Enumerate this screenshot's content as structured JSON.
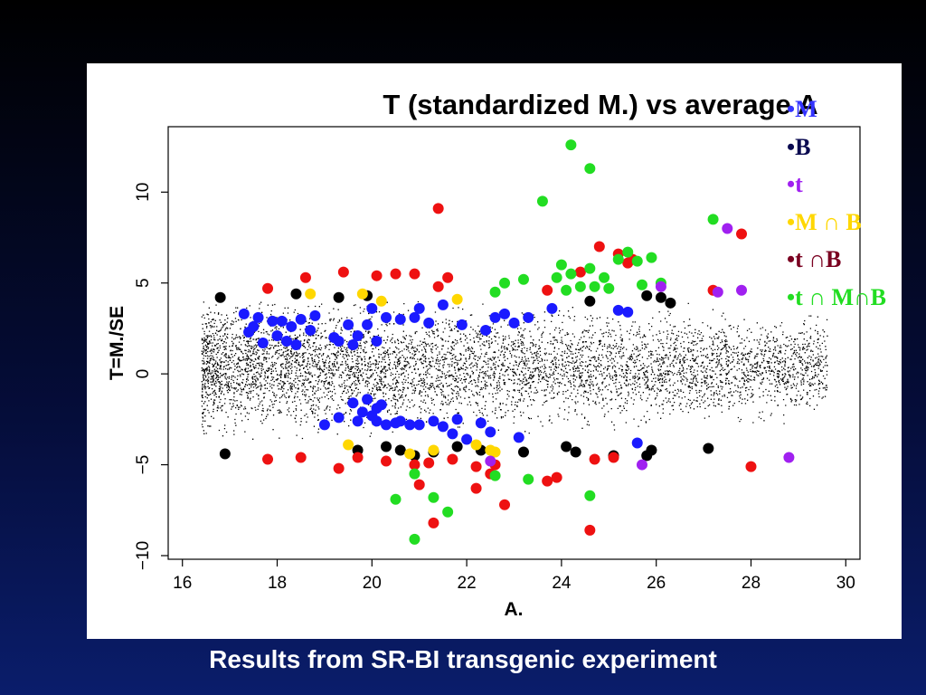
{
  "caption": "Results from SR-BI transgenic experiment",
  "legend": [
    {
      "label": "M",
      "color": "#3333ff"
    },
    {
      "label": "B",
      "color": "#0a0a50"
    },
    {
      "label": "t",
      "color": "#a020f0"
    },
    {
      "label": "M ∩ B",
      "color": "#ffd700"
    },
    {
      "label": "t ∩B",
      "color": "#7a0020"
    },
    {
      "label": "t ∩ M∩B",
      "color": "#22dd22"
    }
  ],
  "chart_data": {
    "type": "scatter",
    "title": "T (standardized M.) vs average A",
    "xlabel": "A.",
    "ylabel": "T=M./SE",
    "xlim": [
      15.7,
      30.3
    ],
    "ylim": [
      -10.2,
      13.6
    ],
    "xticks": [
      "16",
      "18",
      "20",
      "22",
      "24",
      "26",
      "28",
      "30"
    ],
    "yticks": [
      "−10",
      "−5",
      "0",
      "5",
      "10"
    ],
    "background_points": {
      "description_color": "#000000",
      "count": 6000,
      "x_range": [
        16.4,
        29.6
      ],
      "y_center": 0.4
    },
    "series": [
      {
        "name": "blue",
        "color": "#1a1aff",
        "points": [
          [
            17.3,
            3.3
          ],
          [
            17.6,
            3.1
          ],
          [
            17.9,
            2.9
          ],
          [
            18.0,
            2.1
          ],
          [
            18.1,
            2.9
          ],
          [
            18.3,
            2.6
          ],
          [
            18.4,
            1.6
          ],
          [
            18.5,
            3.0
          ],
          [
            18.7,
            2.4
          ],
          [
            18.8,
            3.2
          ],
          [
            17.4,
            2.3
          ],
          [
            17.7,
            1.7
          ],
          [
            17.5,
            2.6
          ],
          [
            18.2,
            1.8
          ],
          [
            19.2,
            2.0
          ],
          [
            19.3,
            1.8
          ],
          [
            19.5,
            2.7
          ],
          [
            19.6,
            1.6
          ],
          [
            19.7,
            2.1
          ],
          [
            19.9,
            2.7
          ],
          [
            20.0,
            3.6
          ],
          [
            20.1,
            1.8
          ],
          [
            20.3,
            3.1
          ],
          [
            20.6,
            3.0
          ],
          [
            20.9,
            3.1
          ],
          [
            21.0,
            3.6
          ],
          [
            21.2,
            2.8
          ],
          [
            21.5,
            3.8
          ],
          [
            21.9,
            2.7
          ],
          [
            22.4,
            2.4
          ],
          [
            22.6,
            3.1
          ],
          [
            22.8,
            3.3
          ],
          [
            23.0,
            2.8
          ],
          [
            23.3,
            3.1
          ],
          [
            23.8,
            3.6
          ],
          [
            25.2,
            3.5
          ],
          [
            25.4,
            3.4
          ],
          [
            19.0,
            -2.8
          ],
          [
            19.3,
            -2.4
          ],
          [
            19.6,
            -1.6
          ],
          [
            19.7,
            -2.6
          ],
          [
            19.9,
            -1.4
          ],
          [
            20.0,
            -2.3
          ],
          [
            20.1,
            -2.6
          ],
          [
            20.2,
            -1.7
          ],
          [
            20.3,
            -2.8
          ],
          [
            20.5,
            -2.7
          ],
          [
            20.6,
            -2.6
          ],
          [
            20.8,
            -2.8
          ],
          [
            21.0,
            -2.8
          ],
          [
            21.3,
            -2.6
          ],
          [
            21.5,
            -2.9
          ],
          [
            21.7,
            -3.3
          ],
          [
            21.8,
            -2.5
          ],
          [
            22.0,
            -3.6
          ],
          [
            22.3,
            -2.7
          ],
          [
            22.5,
            -3.2
          ],
          [
            23.1,
            -3.5
          ],
          [
            25.6,
            -3.8
          ],
          [
            20.1,
            -1.9
          ],
          [
            19.8,
            -2.1
          ]
        ]
      },
      {
        "name": "black",
        "color": "#000000",
        "points": [
          [
            16.8,
            4.2
          ],
          [
            18.4,
            4.4
          ],
          [
            19.3,
            4.2
          ],
          [
            19.9,
            4.3
          ],
          [
            24.6,
            4.0
          ],
          [
            25.8,
            4.3
          ],
          [
            26.1,
            4.2
          ],
          [
            26.3,
            3.9
          ],
          [
            16.9,
            -4.4
          ],
          [
            19.7,
            -4.2
          ],
          [
            20.3,
            -4.0
          ],
          [
            20.6,
            -4.2
          ],
          [
            20.9,
            -4.5
          ],
          [
            21.3,
            -4.3
          ],
          [
            21.8,
            -4.0
          ],
          [
            22.3,
            -4.2
          ],
          [
            23.2,
            -4.3
          ],
          [
            24.1,
            -4.0
          ],
          [
            24.3,
            -4.3
          ],
          [
            25.1,
            -4.5
          ],
          [
            25.9,
            -4.2
          ],
          [
            25.8,
            -4.5
          ],
          [
            27.1,
            -4.1
          ]
        ]
      },
      {
        "name": "red",
        "color": "#ee1111",
        "points": [
          [
            17.8,
            4.7
          ],
          [
            18.6,
            5.3
          ],
          [
            19.4,
            5.6
          ],
          [
            20.1,
            5.4
          ],
          [
            20.5,
            5.5
          ],
          [
            20.9,
            5.5
          ],
          [
            21.4,
            4.8
          ],
          [
            21.6,
            5.3
          ],
          [
            21.4,
            9.1
          ],
          [
            23.7,
            4.6
          ],
          [
            24.4,
            5.6
          ],
          [
            24.8,
            7.0
          ],
          [
            25.2,
            6.6
          ],
          [
            25.4,
            6.1
          ],
          [
            25.5,
            6.3
          ],
          [
            27.2,
            4.6
          ],
          [
            27.8,
            7.7
          ],
          [
            17.8,
            -4.7
          ],
          [
            18.5,
            -4.6
          ],
          [
            19.3,
            -5.2
          ],
          [
            19.7,
            -4.6
          ],
          [
            20.3,
            -4.8
          ],
          [
            20.9,
            -5.0
          ],
          [
            21.2,
            -4.9
          ],
          [
            21.3,
            -8.2
          ],
          [
            21.7,
            -4.7
          ],
          [
            22.2,
            -5.1
          ],
          [
            22.2,
            -6.3
          ],
          [
            22.5,
            -5.5
          ],
          [
            22.6,
            -5.0
          ],
          [
            22.8,
            -7.2
          ],
          [
            23.7,
            -5.9
          ],
          [
            23.9,
            -5.7
          ],
          [
            24.7,
            -4.7
          ],
          [
            24.6,
            -8.6
          ],
          [
            25.1,
            -4.6
          ],
          [
            28.0,
            -5.1
          ],
          [
            21.0,
            -6.1
          ]
        ]
      },
      {
        "name": "yellow",
        "color": "#ffd700",
        "points": [
          [
            18.7,
            4.4
          ],
          [
            19.8,
            4.4
          ],
          [
            20.2,
            4.0
          ],
          [
            21.8,
            4.1
          ],
          [
            19.5,
            -3.9
          ],
          [
            20.8,
            -4.4
          ],
          [
            21.3,
            -4.2
          ],
          [
            22.2,
            -3.9
          ],
          [
            22.6,
            -4.3
          ],
          [
            22.5,
            -4.2
          ]
        ]
      },
      {
        "name": "green",
        "color": "#22dd22",
        "points": [
          [
            22.6,
            4.5
          ],
          [
            22.8,
            5.0
          ],
          [
            23.2,
            5.2
          ],
          [
            23.6,
            9.5
          ],
          [
            23.9,
            5.3
          ],
          [
            24.0,
            6.0
          ],
          [
            24.1,
            4.6
          ],
          [
            24.2,
            5.5
          ],
          [
            24.2,
            12.6
          ],
          [
            24.4,
            4.8
          ],
          [
            24.6,
            5.8
          ],
          [
            24.6,
            11.3
          ],
          [
            24.7,
            4.8
          ],
          [
            24.9,
            5.3
          ],
          [
            25.0,
            4.7
          ],
          [
            25.2,
            6.3
          ],
          [
            25.4,
            6.7
          ],
          [
            25.6,
            6.2
          ],
          [
            25.7,
            4.9
          ],
          [
            25.9,
            6.4
          ],
          [
            26.1,
            5.0
          ],
          [
            27.2,
            8.5
          ],
          [
            20.5,
            -6.9
          ],
          [
            20.9,
            -5.5
          ],
          [
            20.9,
            -9.1
          ],
          [
            21.3,
            -6.8
          ],
          [
            21.6,
            -7.6
          ],
          [
            22.6,
            -5.6
          ],
          [
            23.3,
            -5.8
          ],
          [
            24.6,
            -6.7
          ]
        ]
      },
      {
        "name": "purple",
        "color": "#a020f0",
        "points": [
          [
            26.1,
            4.8
          ],
          [
            27.3,
            4.5
          ],
          [
            27.5,
            8.0
          ],
          [
            27.8,
            4.6
          ],
          [
            22.5,
            -4.8
          ],
          [
            25.7,
            -5.0
          ],
          [
            28.8,
            -4.6
          ]
        ]
      }
    ]
  }
}
